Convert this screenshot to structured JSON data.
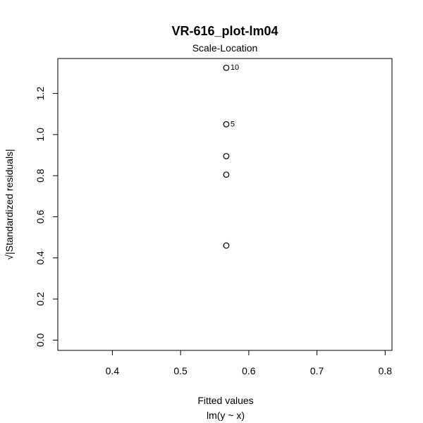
{
  "chart_data": {
    "type": "scatter",
    "title": "VR-616_plot-lm04",
    "subtitle": "Scale-Location",
    "xlabel": "Fitted values",
    "xlabel_sub": "lm(y ~ x)",
    "ylabel": "√|Standardized residuals|",
    "xlim": [
      0.32,
      0.81
    ],
    "ylim": [
      -0.05,
      1.37
    ],
    "x_ticks": [
      0.4,
      0.5,
      0.6,
      0.7,
      0.8
    ],
    "x_tick_labels": [
      "0.4",
      "0.5",
      "0.6",
      "0.7",
      "0.8"
    ],
    "y_ticks": [
      0.0,
      0.2,
      0.4,
      0.6,
      0.8,
      1.0,
      1.2
    ],
    "y_tick_labels": [
      "0.0",
      "0.2",
      "0.4",
      "0.6",
      "0.8",
      "1.0",
      "1.2"
    ],
    "grid": false,
    "points": [
      {
        "x": 0.567,
        "y": 1.325,
        "label": "10"
      },
      {
        "x": 0.567,
        "y": 1.05,
        "label": "5"
      },
      {
        "x": 0.567,
        "y": 0.895,
        "label": ""
      },
      {
        "x": 0.567,
        "y": 0.805,
        "label": ""
      },
      {
        "x": 0.567,
        "y": 0.46,
        "label": ""
      }
    ]
  }
}
